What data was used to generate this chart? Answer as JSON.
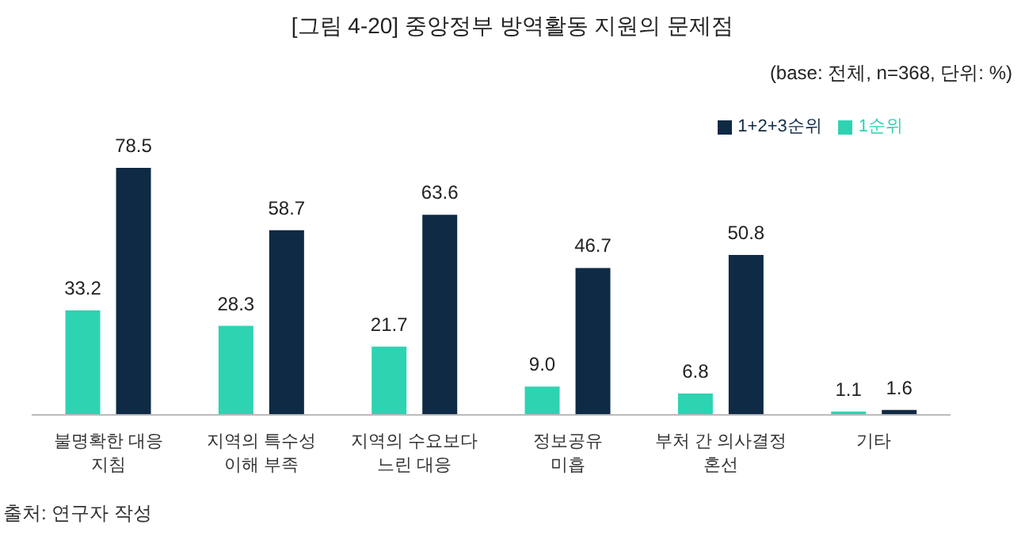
{
  "chart_data": {
    "type": "bar",
    "title": "[그림 4-20] 중앙정부 방역활동 지원의 문제점",
    "subtitle": "(base: 전체, n=368, 단위: %)",
    "categories": [
      "불명확한 대응\n지침",
      "지역의 특수성\n이해 부족",
      "지역의 수요보다\n느린 대응",
      "정보공유\n미흡",
      "부처 간 의사결정\n혼선",
      "기타"
    ],
    "series": [
      {
        "name": "1순위",
        "color": "#2ed3b2",
        "values": [
          33.2,
          28.3,
          21.7,
          9.0,
          6.8,
          1.1
        ],
        "value_labels": [
          "33.2",
          "28.3",
          "21.7",
          "9.0",
          "6.8",
          "1.1"
        ]
      },
      {
        "name": "1+2+3순위",
        "color": "#0f2a44",
        "values": [
          78.5,
          58.7,
          63.6,
          46.7,
          50.8,
          1.6
        ],
        "value_labels": [
          "78.5",
          "58.7",
          "63.6",
          "46.7",
          "50.8",
          "1.6"
        ]
      }
    ],
    "legend": "top right",
    "grid": false,
    "annotations": [
      "출처: 연구자 작성"
    ]
  }
}
